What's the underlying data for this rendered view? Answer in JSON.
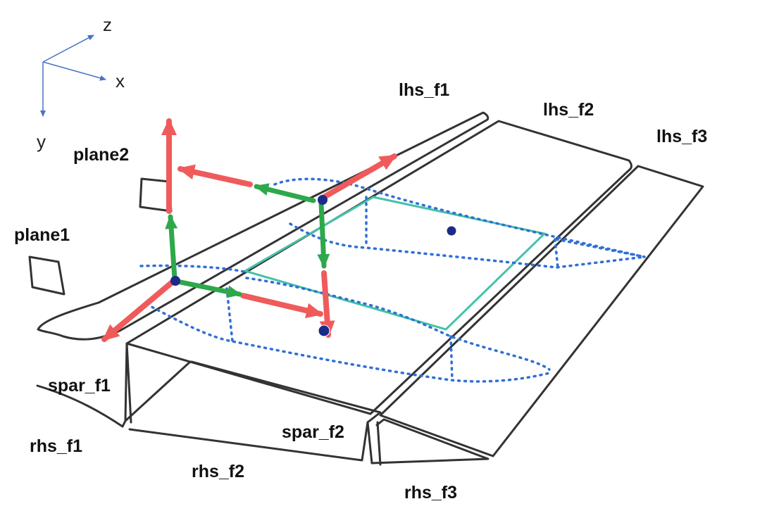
{
  "axes": {
    "x_label": "x",
    "y_label": "y",
    "z_label": "z"
  },
  "labels": {
    "plane1": "plane1",
    "plane2": "plane2",
    "lhs_f1": "lhs_f1",
    "lhs_f2": "lhs_f2",
    "lhs_f3": "lhs_f3",
    "spar_f1": "spar_f1",
    "spar_f2": "spar_f2",
    "rhs_f1": "rhs_f1",
    "rhs_f2": "rhs_f2",
    "rhs_f3": "rhs_f3"
  },
  "colors": {
    "outline": "#333333",
    "blue_contour": "#2f6fd6",
    "node": "#1c2a8a",
    "red_arrow": "#ef5b5b",
    "green_arrow": "#2ea84a",
    "teal_plane": "#44c2a8",
    "axis": "#4a72c4"
  }
}
